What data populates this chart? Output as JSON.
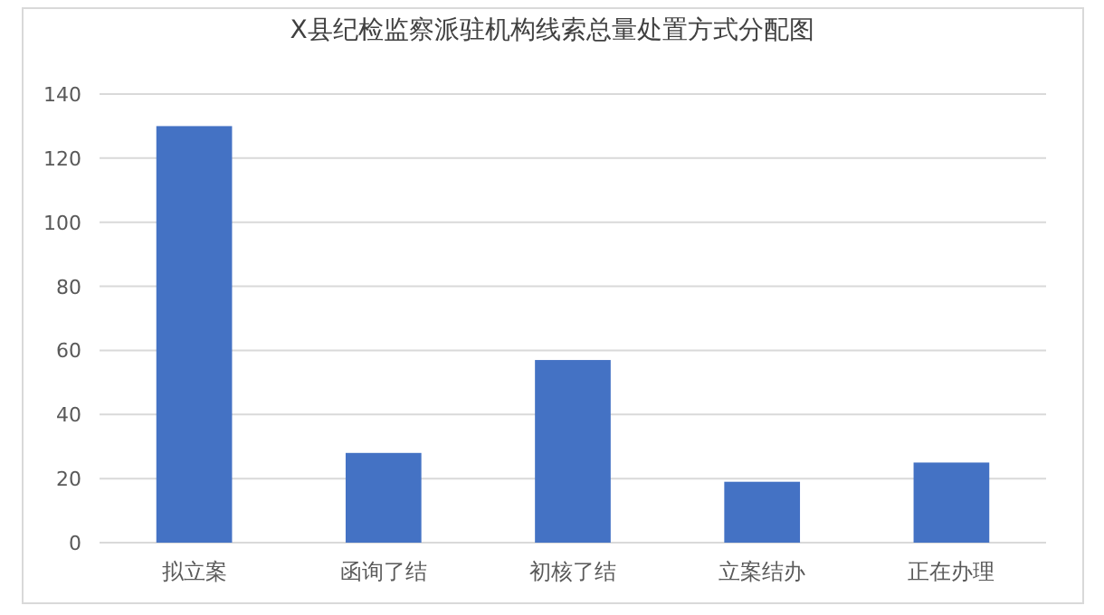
{
  "chart_data": {
    "type": "bar",
    "title": "X县纪检监察派驻机构线索总量处置方式分配图",
    "categories": [
      "拟立案",
      "函询了结",
      "初核了结",
      "立案结办",
      "正在办理"
    ],
    "values": [
      130,
      28,
      57,
      19,
      25
    ],
    "color": "#4472c4",
    "ylim": [
      0,
      140
    ],
    "yticks": [
      0,
      20,
      40,
      60,
      80,
      100,
      120,
      140
    ],
    "grid": "y"
  }
}
